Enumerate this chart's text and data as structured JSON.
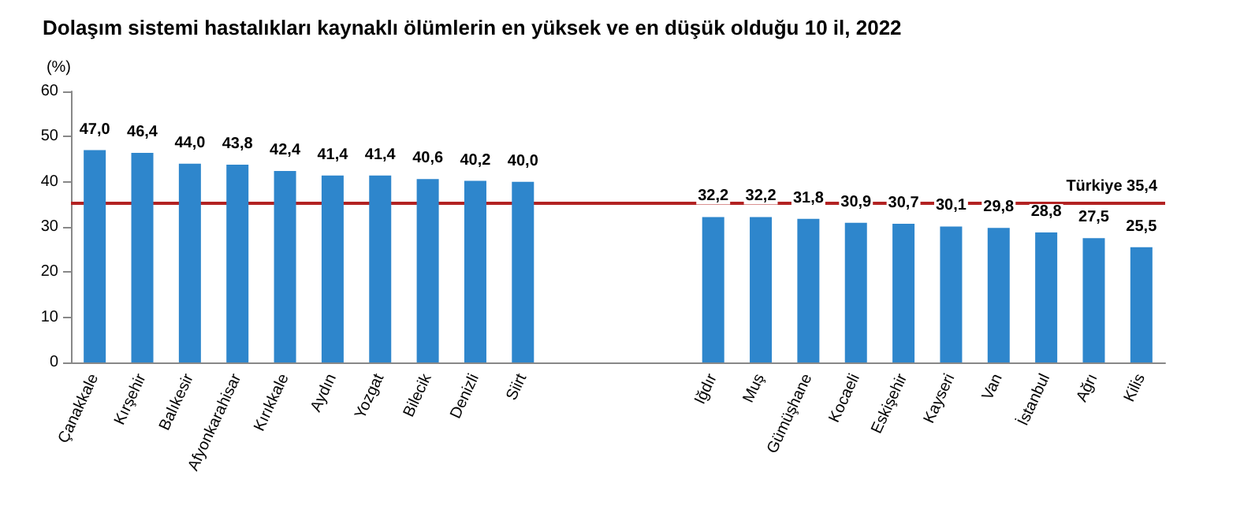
{
  "chart_data": {
    "type": "bar",
    "title": "Dolaşım sistemi hastalıkları kaynaklı ölümlerin en yüksek ve en düşük olduğu 10 il, 2022",
    "ylabel": "(%)",
    "categories": [
      "Çanakkale",
      "Kırşehir",
      "Balıkesir",
      "Afyonkarahisar",
      "Kırıkkale",
      "Aydın",
      "Yozgat",
      "Bilecik",
      "Denizli",
      "Siirt",
      null,
      null,
      null,
      "Iğdır",
      "Muş",
      "Gümüşhane",
      "Kocaeli",
      "Eskişehir",
      "Kayseri",
      "Van",
      "İstanbul",
      "Ağrı",
      "Kilis"
    ],
    "values": [
      47.0,
      46.4,
      44.0,
      43.8,
      42.4,
      41.4,
      41.4,
      40.6,
      40.2,
      40.0,
      null,
      null,
      null,
      32.2,
      32.2,
      31.8,
      30.9,
      30.7,
      30.1,
      29.8,
      28.8,
      27.5,
      25.5
    ],
    "value_labels": [
      "47,0",
      "46,4",
      "44,0",
      "43,8",
      "42,4",
      "41,4",
      "41,4",
      "40,6",
      "40,2",
      "40,0",
      null,
      null,
      null,
      "32,2",
      "32,2",
      "31,8",
      "30,9",
      "30,7",
      "30,1",
      "29,8",
      "28,8",
      "27,5",
      "25,5"
    ],
    "color": "#2e86cc",
    "ylim": [
      0,
      60
    ],
    "yticks": [
      0,
      10,
      20,
      30,
      40,
      50,
      60
    ],
    "grid": false,
    "ref_lines": [
      {
        "axis": "y",
        "value": 35.4,
        "label": "Türkiye 35,4",
        "color": "#b22222",
        "line_style": "solid"
      }
    ]
  }
}
